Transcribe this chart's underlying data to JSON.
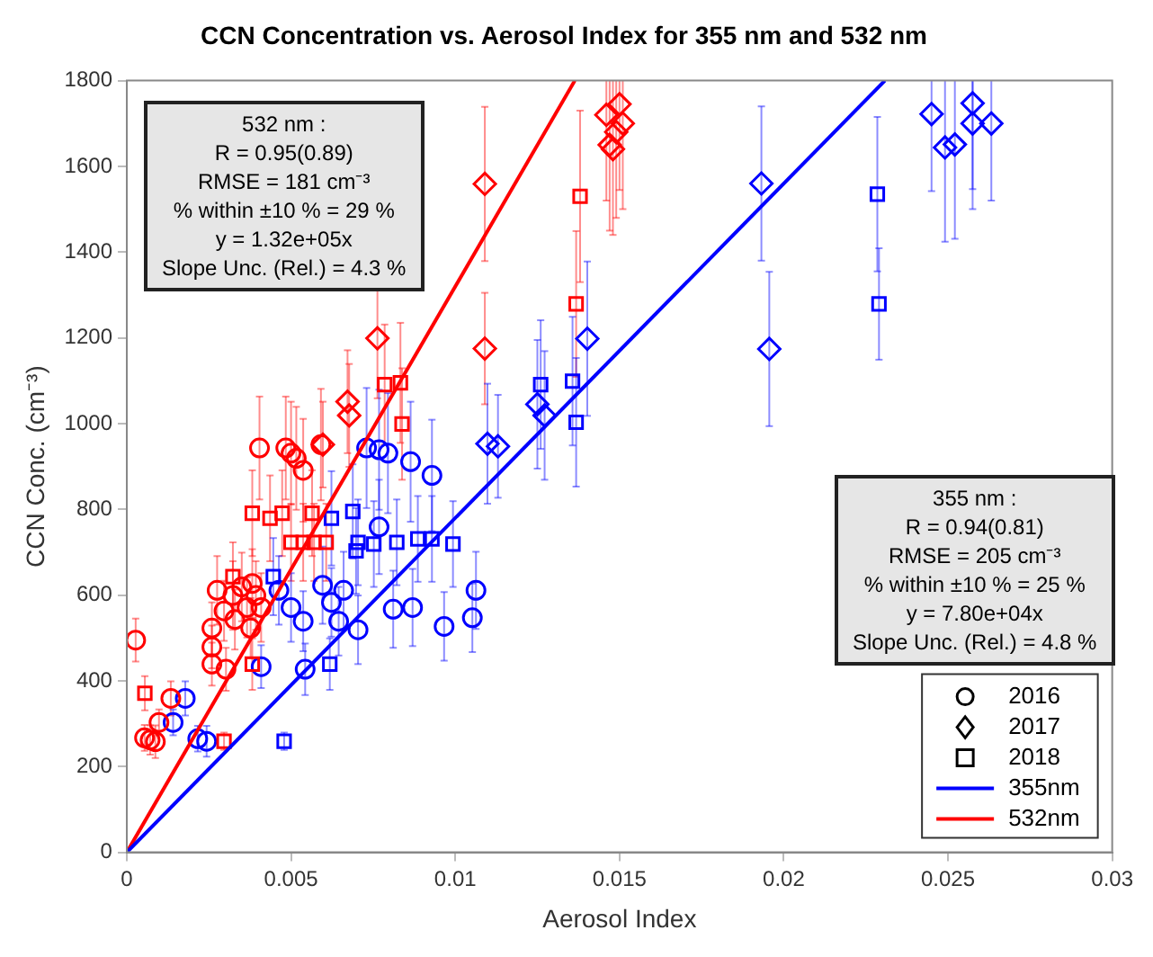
{
  "chart_data": {
    "type": "scatter",
    "title": "CCN Concentration vs. Aerosol Index for 355 nm and 532 nm",
    "xlabel": "Aerosol Index",
    "ylabel": "CCN Conc. (cm⁻³)",
    "xlim": [
      0,
      0.03
    ],
    "xticks": [
      0,
      0.005,
      0.01,
      0.015,
      0.02,
      0.025,
      0.03
    ],
    "ylim": [
      0,
      1800
    ],
    "yticks": [
      0,
      200,
      400,
      600,
      800,
      1000,
      1200,
      1400,
      1600,
      1800
    ],
    "grid": false,
    "legend": "bottom right",
    "annotations": [
      "532 nm :\nR = 0.95(0.89)\nRMSE = 181 cm⁻³\n% within ±10 % = 29 %\ny = 1.32e+05x\nSlope Unc. (Rel.) = 4.3 %",
      "355 nm :\nR = 0.94(0.81)\nRMSE = 205 cm⁻³\n% within ±10 % = 25 %\ny = 7.80e+04x\nSlope Unc. (Rel.) = 4.8 %"
    ],
    "series": [
      {
        "type": "scatter",
        "color": "#ff0000",
        "marker": "circle",
        "x": [
          0.00027,
          0.00054,
          0.00071,
          0.00087,
          0.00134,
          0.00098,
          0.00259,
          0.00259,
          0.00302,
          0.00259,
          0.00275,
          0.00323,
          0.0035,
          0.00382,
          0.00296,
          0.00329,
          0.00366,
          0.00393,
          0.00377,
          0.00409,
          0.00404,
          0.00484,
          0.00516,
          0.00537,
          0.005,
          0.00591
        ],
        "values": [
          495,
          267,
          262,
          258,
          359,
          303,
          479,
          439,
          427,
          523,
          611,
          599,
          619,
          627,
          563,
          543,
          571,
          599,
          523,
          571,
          943,
          943,
          919,
          891,
          931,
          951
        ],
        "errors": [
          50,
          30,
          34,
          38,
          40,
          30,
          50,
          50,
          50,
          60,
          80,
          80,
          80,
          80,
          70,
          70,
          70,
          80,
          70,
          80,
          120,
          120,
          120,
          120,
          120,
          130
        ]
      },
      {
        "type": "scatter",
        "color": "#ff0000",
        "marker": "diamond",
        "x": [
          0.00597,
          0.00672,
          0.00677,
          0.00763,
          0.0109,
          0.0109,
          0.0146,
          0.0147,
          0.0148,
          0.0149,
          0.015,
          0.0151
        ],
        "values": [
          951,
          1051,
          1019,
          1199,
          1175,
          1559,
          1720,
          1650,
          1640,
          1680,
          1745,
          1700
        ],
        "errors": [
          100,
          120,
          120,
          140,
          130,
          180,
          200,
          200,
          200,
          200,
          200,
          200
        ]
      },
      {
        "type": "scatter",
        "color": "#ff0000",
        "marker": "square",
        "x": [
          0.00055,
          0.00296,
          0.00382,
          0.00382,
          0.00436,
          0.00473,
          0.00564,
          0.005,
          0.00537,
          0.0057,
          0.00607,
          0.00323,
          0.00785,
          0.00833,
          0.00838,
          0.01368,
          0.0138
        ],
        "values": [
          371,
          259,
          439,
          791,
          779,
          791,
          791,
          723,
          723,
          723,
          723,
          643,
          1091,
          1095,
          999,
          1279,
          1530
        ],
        "errors": [
          40,
          20,
          60,
          100,
          100,
          100,
          100,
          90,
          90,
          90,
          90,
          80,
          140,
          140,
          130,
          170,
          200
        ]
      },
      {
        "type": "scatter",
        "color": "#0000ff",
        "marker": "circle",
        "x": [
          0.00178,
          0.00141,
          0.00216,
          0.00243,
          0.00409,
          0.00543,
          0.00463,
          0.005,
          0.00537,
          0.00596,
          0.00623,
          0.0066,
          0.00645,
          0.00704,
          0.00811,
          0.0087,
          0.00966,
          0.01052,
          0.01063,
          0.0073,
          0.00768,
          0.00795,
          0.00864,
          0.00929,
          0.00768
        ],
        "values": [
          359,
          303,
          265,
          259,
          433,
          427,
          611,
          571,
          539,
          623,
          583,
          611,
          539,
          519,
          567,
          571,
          527,
          547,
          611,
          943,
          939,
          931,
          911,
          879,
          759
        ],
        "errors": [
          40,
          30,
          30,
          36,
          50,
          60,
          80,
          80,
          70,
          90,
          80,
          90,
          80,
          80,
          90,
          90,
          80,
          80,
          90,
          140,
          140,
          140,
          140,
          130,
          110
        ]
      },
      {
        "type": "scatter",
        "color": "#0000ff",
        "marker": "diamond",
        "x": [
          0.01098,
          0.0113,
          0.0125,
          0.01272,
          0.01402,
          0.01956,
          0.01932,
          0.0245,
          0.02491,
          0.02521,
          0.02575,
          0.02575,
          0.02632
        ],
        "values": [
          953,
          947,
          1045,
          1019,
          1198,
          1174,
          1560,
          1722,
          1644,
          1651,
          1747,
          1700,
          1700
        ],
        "errors": [
          140,
          120,
          150,
          150,
          180,
          180,
          180,
          180,
          220,
          220,
          200,
          200,
          180
        ]
      },
      {
        "type": "scatter",
        "color": "#0000ff",
        "marker": "square",
        "x": [
          0.00446,
          0.00618,
          0.00479,
          0.00688,
          0.00623,
          0.00704,
          0.00752,
          0.00822,
          0.00886,
          0.00929,
          0.00993,
          0.00698,
          0.0126,
          0.01357,
          0.01368,
          0.02285,
          0.0229
        ],
        "values": [
          643,
          439,
          259,
          795,
          779,
          723,
          719,
          723,
          731,
          731,
          719,
          703,
          1091,
          1099,
          1003,
          1535,
          1279
        ],
        "errors": [
          90,
          60,
          20,
          110,
          110,
          100,
          100,
          100,
          100,
          100,
          100,
          100,
          150,
          150,
          150,
          180,
          130
        ]
      },
      {
        "type": "scatter",
        "name": "2016",
        "color": "#000000",
        "marker": "circle"
      },
      {
        "type": "scatter",
        "name": "2017",
        "color": "#000000",
        "marker": "diamond"
      },
      {
        "type": "scatter",
        "name": "2018",
        "color": "#000000",
        "marker": "square"
      },
      {
        "type": "line",
        "name": "355nm",
        "color": "#0000ff",
        "x": [
          0,
          0.02308
        ],
        "values": [
          0,
          1800
        ]
      },
      {
        "type": "line",
        "name": "532nm",
        "color": "#ff0000",
        "x": [
          0,
          0.01364
        ],
        "values": [
          0,
          1800
        ]
      }
    ]
  }
}
